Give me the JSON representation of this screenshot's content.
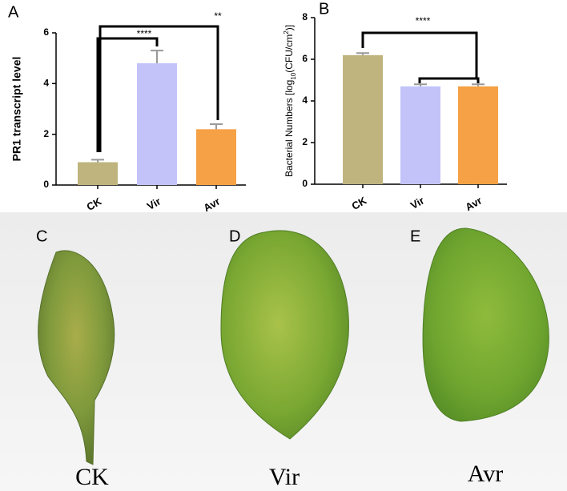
{
  "chart_data": [
    {
      "type": "bar",
      "panel": "A",
      "ylabel": "PR1 transcript level",
      "categories": [
        "CK",
        "Vir",
        "Avr"
      ],
      "values": [
        0.9,
        4.8,
        2.2
      ],
      "errors": [
        0.1,
        0.5,
        0.2
      ],
      "colors": [
        "#bfb47e",
        "#c3c3fa",
        "#f6a145"
      ],
      "ylim": [
        0,
        6
      ],
      "yticks": [
        0,
        2,
        4,
        6
      ],
      "annotations": [
        "****",
        "**"
      ]
    },
    {
      "type": "bar",
      "panel": "B",
      "ylabel": [
        "Bacterial Numbers [log",
        "10",
        "(CFU/cm",
        "2",
        ")]"
      ],
      "categories": [
        "CK",
        "Vir",
        "Avr"
      ],
      "values": [
        6.2,
        4.7,
        4.7
      ],
      "errors": [
        0.1,
        0.1,
        0.1
      ],
      "colors": [
        "#bfb47e",
        "#c3c3fa",
        "#f6a145"
      ],
      "ylim": [
        0,
        8
      ],
      "yticks": [
        0,
        2,
        4,
        6,
        8
      ],
      "annotations": [
        "****"
      ]
    }
  ],
  "photos": [
    {
      "panel": "C",
      "caption": "CK"
    },
    {
      "panel": "D",
      "caption": "Vir"
    },
    {
      "panel": "E",
      "caption": "Avr"
    }
  ]
}
